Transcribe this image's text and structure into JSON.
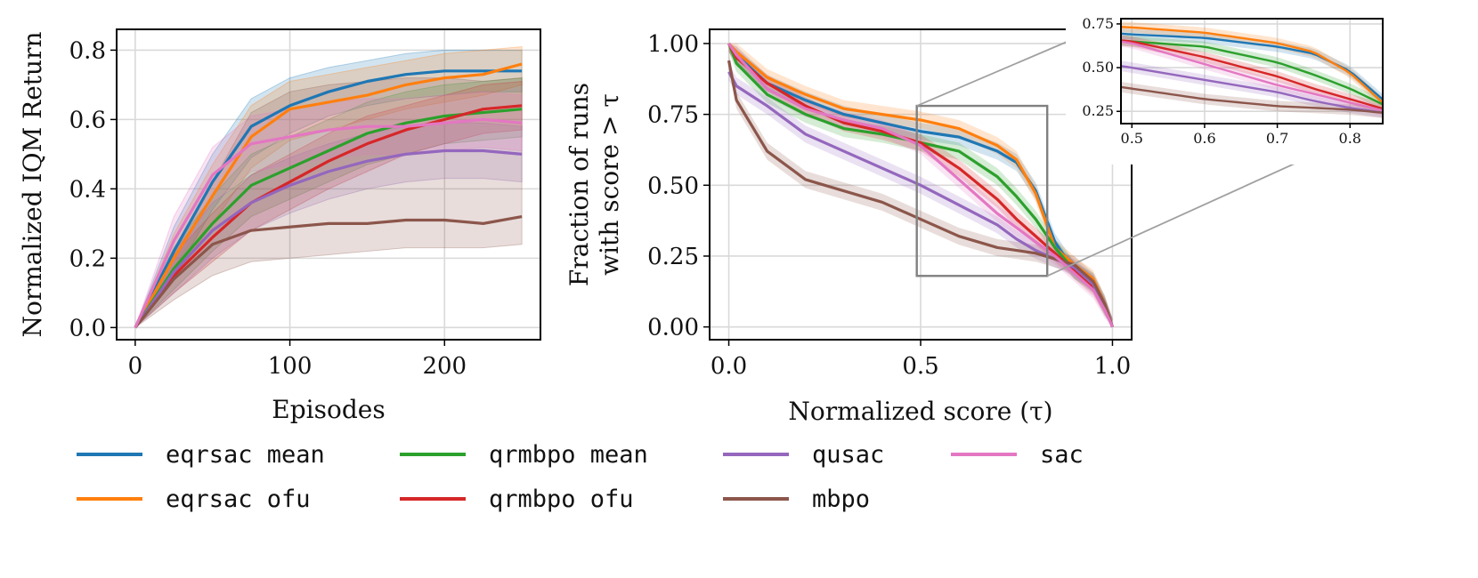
{
  "chart_data": [
    {
      "type": "line",
      "title": "",
      "xlabel": "Episodes",
      "ylabel": "Normalized IQM Return",
      "xlim": [
        -12,
        262
      ],
      "ylim": [
        -0.035,
        0.86
      ],
      "xticks": [
        0,
        100,
        200
      ],
      "xtick_labels": [
        "0",
        "100",
        "200"
      ],
      "yticks": [
        0.0,
        0.2,
        0.4,
        0.6,
        0.8
      ],
      "ytick_labels": [
        "0.0",
        "0.2",
        "0.4",
        "0.6",
        "0.8"
      ],
      "grid": true,
      "x": [
        0,
        25,
        50,
        75,
        100,
        125,
        150,
        175,
        200,
        225,
        250
      ],
      "series": [
        {
          "name": "eqrsac mean",
          "color": "#1f77b4",
          "values": [
            0.0,
            0.22,
            0.42,
            0.58,
            0.64,
            0.68,
            0.71,
            0.73,
            0.74,
            0.74,
            0.74
          ],
          "lower": [
            0.0,
            0.15,
            0.34,
            0.49,
            0.56,
            0.61,
            0.64,
            0.66,
            0.67,
            0.68,
            0.68
          ],
          "upper": [
            0.0,
            0.29,
            0.5,
            0.66,
            0.72,
            0.75,
            0.77,
            0.79,
            0.8,
            0.8,
            0.8
          ]
        },
        {
          "name": "eqrsac ofu",
          "color": "#ff7f0e",
          "values": [
            0.0,
            0.2,
            0.38,
            0.55,
            0.63,
            0.65,
            0.67,
            0.7,
            0.72,
            0.73,
            0.76
          ],
          "lower": [
            0.0,
            0.14,
            0.3,
            0.46,
            0.54,
            0.57,
            0.6,
            0.63,
            0.65,
            0.67,
            0.7
          ],
          "upper": [
            0.0,
            0.27,
            0.47,
            0.64,
            0.71,
            0.73,
            0.75,
            0.77,
            0.79,
            0.8,
            0.81
          ]
        },
        {
          "name": "qrmbpo mean",
          "color": "#2ca02c",
          "values": [
            0.0,
            0.17,
            0.3,
            0.41,
            0.46,
            0.51,
            0.56,
            0.59,
            0.61,
            0.62,
            0.63
          ],
          "lower": [
            0.0,
            0.11,
            0.22,
            0.32,
            0.37,
            0.42,
            0.47,
            0.5,
            0.53,
            0.54,
            0.55
          ],
          "upper": [
            0.0,
            0.23,
            0.38,
            0.5,
            0.55,
            0.6,
            0.65,
            0.68,
            0.7,
            0.71,
            0.72
          ]
        },
        {
          "name": "qrmbpo ofu",
          "color": "#d62728",
          "values": [
            0.0,
            0.15,
            0.26,
            0.36,
            0.42,
            0.48,
            0.53,
            0.57,
            0.6,
            0.63,
            0.64
          ],
          "lower": [
            0.0,
            0.1,
            0.19,
            0.28,
            0.34,
            0.4,
            0.45,
            0.5,
            0.53,
            0.56,
            0.57
          ],
          "upper": [
            0.0,
            0.21,
            0.33,
            0.44,
            0.5,
            0.56,
            0.61,
            0.64,
            0.67,
            0.7,
            0.71
          ]
        },
        {
          "name": "qusac",
          "color": "#9467bd",
          "values": [
            0.0,
            0.16,
            0.28,
            0.36,
            0.41,
            0.45,
            0.48,
            0.5,
            0.51,
            0.51,
            0.5
          ],
          "lower": [
            0.0,
            0.1,
            0.2,
            0.28,
            0.33,
            0.37,
            0.4,
            0.42,
            0.43,
            0.43,
            0.42
          ],
          "upper": [
            0.0,
            0.22,
            0.36,
            0.44,
            0.49,
            0.53,
            0.56,
            0.58,
            0.59,
            0.59,
            0.58
          ]
        },
        {
          "name": "mbpo",
          "color": "#8c564b",
          "values": [
            0.0,
            0.14,
            0.24,
            0.28,
            0.29,
            0.3,
            0.3,
            0.31,
            0.31,
            0.3,
            0.32
          ],
          "lower": [
            0.0,
            0.08,
            0.15,
            0.19,
            0.2,
            0.21,
            0.22,
            0.23,
            0.23,
            0.23,
            0.24
          ],
          "upper": [
            0.0,
            0.22,
            0.42,
            0.62,
            0.68,
            0.7,
            0.71,
            0.72,
            0.72,
            0.71,
            0.72
          ]
        },
        {
          "name": "sac",
          "color": "#e377c2",
          "values": [
            0.0,
            0.25,
            0.44,
            0.53,
            0.55,
            0.57,
            0.58,
            0.58,
            0.59,
            0.6,
            0.59
          ],
          "lower": [
            0.0,
            0.18,
            0.36,
            0.45,
            0.47,
            0.49,
            0.5,
            0.5,
            0.51,
            0.52,
            0.51
          ],
          "upper": [
            0.0,
            0.32,
            0.52,
            0.61,
            0.63,
            0.65,
            0.66,
            0.66,
            0.67,
            0.68,
            0.67
          ]
        }
      ]
    },
    {
      "type": "line",
      "title": "",
      "xlabel": "Normalized score (τ)",
      "ylabel": "Fraction of runs\nwith score > τ",
      "xlim": [
        -0.05,
        1.05
      ],
      "ylim": [
        -0.045,
        1.05
      ],
      "xticks": [
        0.0,
        0.5,
        1.0
      ],
      "xtick_labels": [
        "0.0",
        "0.5",
        "1.0"
      ],
      "yticks": [
        0.0,
        0.25,
        0.5,
        0.75,
        1.0
      ],
      "ytick_labels": [
        "0.00",
        "0.25",
        "0.50",
        "0.75",
        "1.00"
      ],
      "grid": true,
      "x": [
        0.0,
        0.02,
        0.1,
        0.2,
        0.3,
        0.4,
        0.5,
        0.6,
        0.7,
        0.75,
        0.8,
        0.85,
        0.9,
        0.95,
        0.98,
        1.0
      ],
      "series": [
        {
          "name": "eqrsac mean",
          "color": "#1f77b4",
          "values": [
            1.0,
            0.96,
            0.86,
            0.8,
            0.75,
            0.72,
            0.69,
            0.67,
            0.62,
            0.58,
            0.48,
            0.3,
            0.2,
            0.16,
            0.08,
            0.0
          ]
        },
        {
          "name": "eqrsac ofu",
          "color": "#ff7f0e",
          "values": [
            1.0,
            0.97,
            0.88,
            0.82,
            0.77,
            0.75,
            0.73,
            0.7,
            0.64,
            0.59,
            0.47,
            0.28,
            0.22,
            0.17,
            0.08,
            0.0
          ]
        },
        {
          "name": "qrmbpo mean",
          "color": "#2ca02c",
          "values": [
            1.0,
            0.93,
            0.82,
            0.75,
            0.7,
            0.68,
            0.65,
            0.62,
            0.53,
            0.46,
            0.38,
            0.28,
            0.2,
            0.15,
            0.07,
            0.0
          ]
        },
        {
          "name": "qrmbpo ofu",
          "color": "#d62728",
          "values": [
            1.0,
            0.95,
            0.86,
            0.78,
            0.72,
            0.69,
            0.65,
            0.56,
            0.45,
            0.38,
            0.32,
            0.26,
            0.2,
            0.14,
            0.07,
            0.0
          ]
        },
        {
          "name": "qusac",
          "color": "#9467bd",
          "values": [
            0.9,
            0.85,
            0.78,
            0.68,
            0.62,
            0.56,
            0.5,
            0.43,
            0.36,
            0.31,
            0.27,
            0.24,
            0.21,
            0.15,
            0.07,
            0.0
          ]
        },
        {
          "name": "mbpo",
          "color": "#8c564b",
          "values": [
            0.94,
            0.8,
            0.62,
            0.52,
            0.48,
            0.44,
            0.38,
            0.32,
            0.28,
            0.27,
            0.26,
            0.24,
            0.22,
            0.16,
            0.08,
            0.0
          ]
        },
        {
          "name": "sac",
          "color": "#e377c2",
          "values": [
            1.0,
            0.96,
            0.84,
            0.77,
            0.73,
            0.7,
            0.64,
            0.52,
            0.4,
            0.35,
            0.3,
            0.25,
            0.19,
            0.13,
            0.06,
            0.0
          ]
        }
      ],
      "zoom_box": {
        "x": [
          0.49,
          0.83
        ],
        "y": [
          0.18,
          0.78
        ]
      },
      "inset": {
        "xlim": [
          0.485,
          0.845
        ],
        "ylim": [
          0.18,
          0.78
        ],
        "xticks": [
          0.5,
          0.6,
          0.7,
          0.8
        ],
        "xtick_labels": [
          "0.5",
          "0.6",
          "0.7",
          "0.8"
        ],
        "yticks": [
          0.25,
          0.5,
          0.75
        ],
        "ytick_labels": [
          "0.25",
          "0.50",
          "0.75"
        ]
      }
    }
  ],
  "legend": {
    "placement": "bottom",
    "columns": 4,
    "entries": [
      {
        "label": "eqrsac mean",
        "color": "#1f77b4"
      },
      {
        "label": "eqrsac ofu",
        "color": "#ff7f0e"
      },
      {
        "label": "qrmbpo mean",
        "color": "#2ca02c"
      },
      {
        "label": "qrmbpo ofu",
        "color": "#d62728"
      },
      {
        "label": "qusac",
        "color": "#9467bd"
      },
      {
        "label": "mbpo",
        "color": "#8c564b"
      },
      {
        "label": "sac",
        "color": "#e377c2"
      }
    ]
  }
}
